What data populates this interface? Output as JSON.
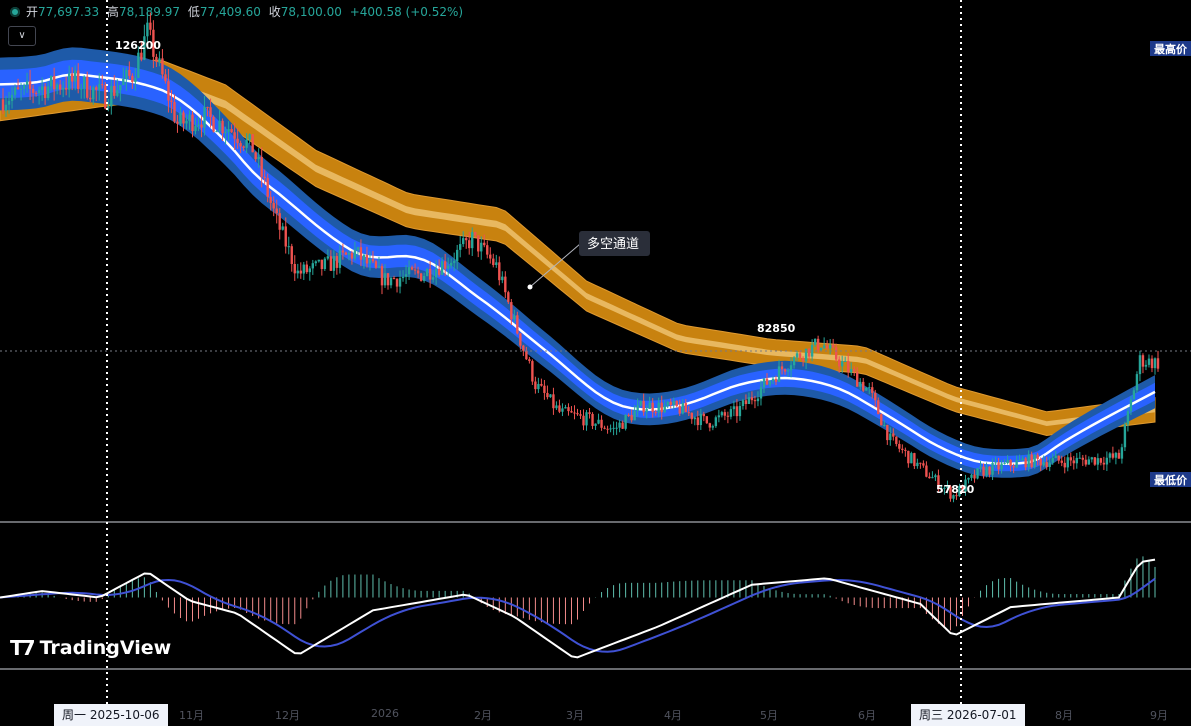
{
  "header": {
    "open_label": "开",
    "open": "77,697.33",
    "high_label": "高",
    "high": "78,189.97",
    "low_label": "低",
    "low": "77,409.60",
    "close_label": "收",
    "close": "78,100.00",
    "change": "+400.58 (+0.52%)",
    "collapse_icon": "chevron-down-icon"
  },
  "annotations": {
    "peak": "126200",
    "mid_high": "82850",
    "trough": "57820",
    "channel_callout": "多空通道",
    "max_badge": "最高价",
    "min_badge": "最低价"
  },
  "watermark": "TradingView",
  "time_axis": {
    "ticks": [
      "11月",
      "12月",
      "2026",
      "2月",
      "3月",
      "4月",
      "5月",
      "6月",
      "8月",
      "9月"
    ],
    "crosshair_left": "周一  2025-10-06",
    "crosshair_right": "周三  2026-07-01"
  },
  "colors": {
    "up": "#26a69a",
    "down": "#ef5350",
    "channel_outer": "#c8820f",
    "channel_inner": "#2962ff",
    "macd": "#ffffff",
    "signal": "#3f51d4"
  },
  "chart_data": {
    "type": "candlestick",
    "title": "",
    "xlabel": "",
    "ylabel": "",
    "x_range": [
      "2025-08-18",
      "2026-09-07"
    ],
    "ylim": [
      55500,
      130300
    ],
    "price_path": [
      [
        "2025-08-18",
        116000
      ],
      [
        "2025-08-30",
        117500
      ],
      [
        "2025-09-12",
        118600
      ],
      [
        "2025-09-22",
        116400
      ],
      [
        "2025-10-01",
        119500
      ],
      [
        "2025-10-06",
        125600
      ],
      [
        "2025-10-10",
        120500
      ],
      [
        "2025-10-16",
        112500
      ],
      [
        "2025-10-25",
        113500
      ],
      [
        "2025-11-02",
        112000
      ],
      [
        "2025-11-10",
        109000
      ],
      [
        "2025-11-18",
        98500
      ],
      [
        "2025-11-25",
        91000
      ],
      [
        "2025-12-04",
        92000
      ],
      [
        "2025-12-14",
        94000
      ],
      [
        "2025-12-24",
        90000
      ],
      [
        "2026-01-06",
        91000
      ],
      [
        "2026-01-15",
        93000
      ],
      [
        "2026-01-22",
        96000
      ],
      [
        "2026-01-30",
        92000
      ],
      [
        "2026-02-05",
        84000
      ],
      [
        "2026-02-12",
        75000
      ],
      [
        "2026-02-20",
        71000
      ],
      [
        "2026-03-01",
        70000
      ],
      [
        "2026-03-10",
        68500
      ],
      [
        "2026-03-20",
        72000
      ],
      [
        "2026-04-01",
        71500
      ],
      [
        "2026-04-10",
        69500
      ],
      [
        "2026-04-20",
        71000
      ],
      [
        "2026-04-28",
        74500
      ],
      [
        "2026-05-08",
        78500
      ],
      [
        "2026-05-18",
        81000
      ],
      [
        "2026-05-25",
        78000
      ],
      [
        "2026-06-03",
        74000
      ],
      [
        "2026-06-10",
        67000
      ],
      [
        "2026-06-20",
        63000
      ],
      [
        "2026-07-01",
        59000
      ],
      [
        "2026-07-10",
        62500
      ],
      [
        "2026-07-25",
        64000
      ],
      [
        "2026-08-10",
        64000
      ],
      [
        "2026-08-25",
        64500
      ],
      [
        "2026-09-01",
        78500
      ],
      [
        "2026-09-07",
        78100
      ]
    ],
    "extremes": [
      {
        "label": "126200",
        "date": "2025-10-06",
        "value": 126200
      },
      {
        "label": "82850",
        "date": "2026-05-15",
        "value": 82850
      },
      {
        "label": "57820",
        "date": "2026-07-01",
        "value": 57820
      }
    ],
    "series": [
      {
        "name": "多空通道",
        "values_note": "",
        "path": [
          [
            "2025-08-18",
            113500
          ],
          [
            "2025-09-20",
            115500
          ],
          [
            "2025-10-10",
            116500
          ],
          [
            "2025-11-01",
            113000
          ],
          [
            "2025-12-01",
            104000
          ],
          [
            "2026-01-01",
            98000
          ],
          [
            "2026-02-01",
            96000
          ],
          [
            "2026-03-01",
            86000
          ],
          [
            "2026-04-01",
            80000
          ],
          [
            "2026-05-01",
            78000
          ],
          [
            "2026-06-01",
            77000
          ],
          [
            "2026-07-01",
            71500
          ],
          [
            "2026-08-01",
            68000
          ],
          [
            "2026-09-07",
            70000
          ]
        ]
      }
    ],
    "macd_ylim": [
      -1,
      1
    ],
    "macd_path": [
      [
        "2025-08-18",
        0.0
      ],
      [
        "2025-09-01",
        0.1
      ],
      [
        "2025-09-20",
        0.0
      ],
      [
        "2025-10-06",
        0.4
      ],
      [
        "2025-10-20",
        -0.05
      ],
      [
        "2025-11-05",
        -0.25
      ],
      [
        "2025-11-25",
        -0.9
      ],
      [
        "2025-12-20",
        -0.2
      ],
      [
        "2026-01-20",
        0.05
      ],
      [
        "2026-02-05",
        -0.3
      ],
      [
        "2026-02-25",
        -0.95
      ],
      [
        "2026-03-25",
        -0.45
      ],
      [
        "2026-04-25",
        0.2
      ],
      [
        "2026-05-20",
        0.3
      ],
      [
        "2026-06-20",
        -0.1
      ],
      [
        "2026-07-01",
        -0.6
      ],
      [
        "2026-07-20",
        -0.15
      ],
      [
        "2026-08-25",
        0.0
      ],
      [
        "2026-09-01",
        0.55
      ],
      [
        "2026-09-07",
        0.6
      ]
    ],
    "legend": "none",
    "grid": false
  }
}
